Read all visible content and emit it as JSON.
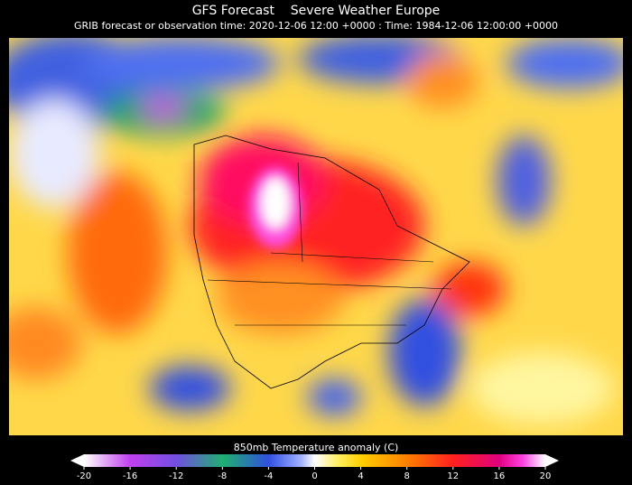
{
  "header": {
    "title": "GFS Forecast    Severe Weather Europe",
    "subtitle": "GRIB forecast or observation time: 2020-12-06 12:00 +0000 : Time: 1984-12-06 12:00:00 +0000"
  },
  "colorbar": {
    "label": "850mb Temperature anomaly (C)",
    "range": [
      -20,
      20
    ],
    "ticks": [
      -20,
      -16,
      -12,
      -8,
      -4,
      0,
      4,
      8,
      12,
      16,
      20
    ]
  }
}
